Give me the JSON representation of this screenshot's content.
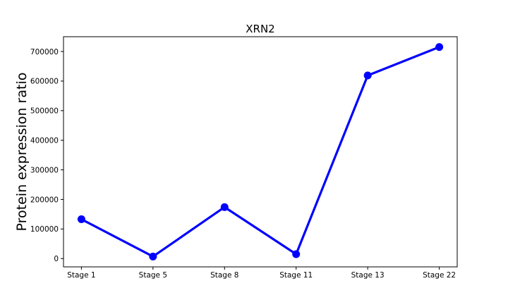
{
  "chart_data": {
    "type": "line",
    "title": "XRN2",
    "xlabel": "",
    "ylabel": "Protein expression ratio",
    "categories": [
      "Stage 1",
      "Stage 5",
      "Stage 8",
      "Stage 11",
      "Stage 13",
      "Stage 22"
    ],
    "series": [
      {
        "values": [
          133000,
          7000,
          174000,
          15000,
          619000,
          715000
        ]
      }
    ],
    "ylim": [
      -28000,
      750000
    ],
    "yticks": [
      0,
      100000,
      200000,
      300000,
      400000,
      500000,
      600000,
      700000
    ],
    "ytick_labels": [
      "0",
      "100000",
      "200000",
      "300000",
      "400000",
      "500000",
      "600000",
      "700000"
    ],
    "grid": false,
    "legend": "none",
    "colors": {
      "line": "#0000ff",
      "axes": "#000000",
      "background": "#ffffff"
    }
  }
}
